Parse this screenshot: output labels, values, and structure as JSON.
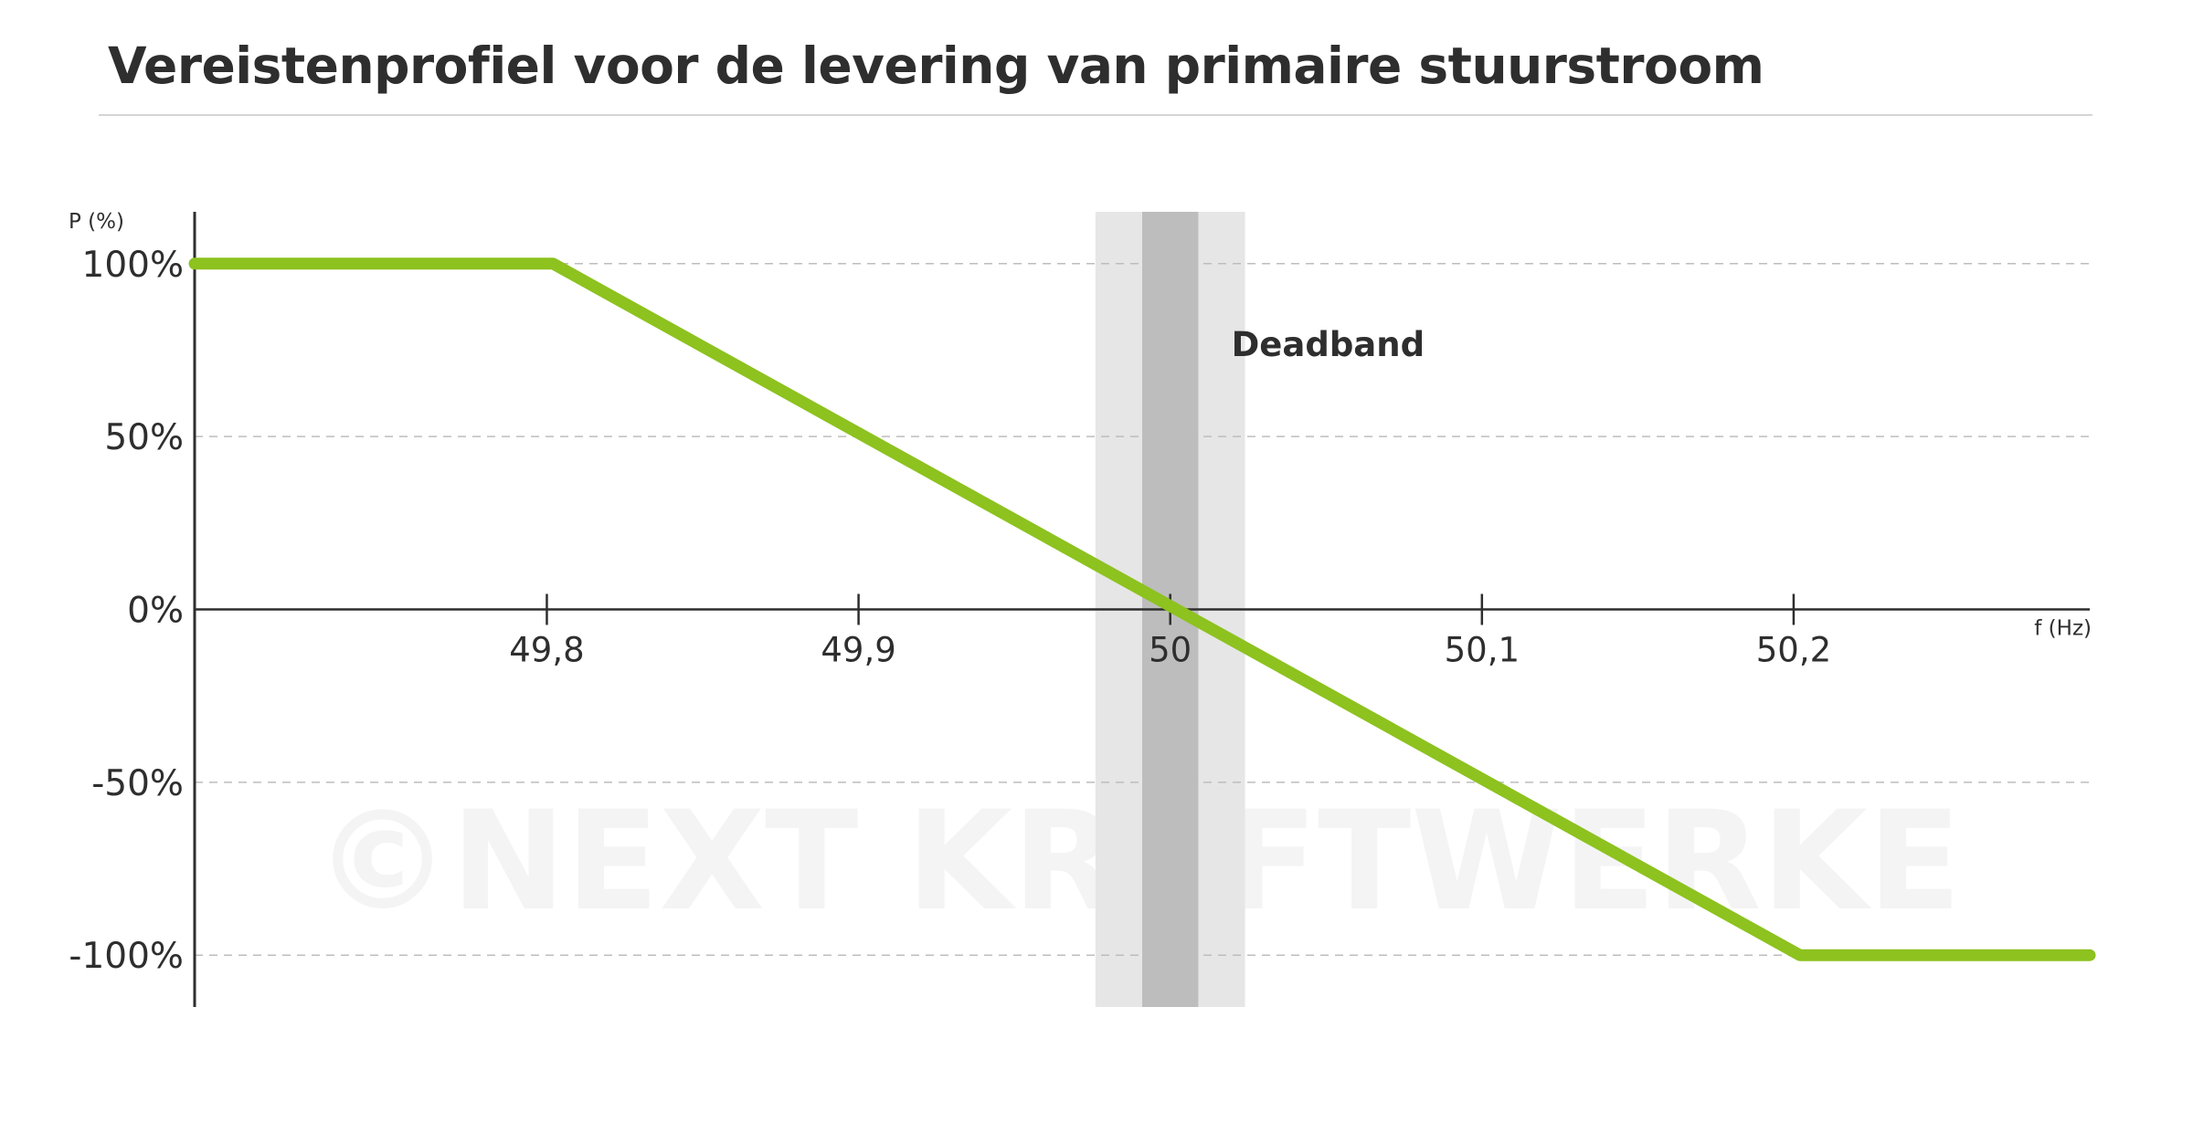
{
  "chart_data": {
    "type": "line",
    "title": "Vereistenprofiel voor de levering van primaire stuurstroom",
    "xlabel": "f (Hz)",
    "ylabel": "P (%)",
    "x_ticks": [
      {
        "value": 49.8,
        "label": "49,8"
      },
      {
        "value": 49.9,
        "label": "49,9"
      },
      {
        "value": 50.0,
        "label": "50"
      },
      {
        "value": 50.1,
        "label": "50,1"
      },
      {
        "value": 50.2,
        "label": "50,2"
      }
    ],
    "y_ticks": [
      {
        "value": 100,
        "label": "100%"
      },
      {
        "value": 50,
        "label": "50%"
      },
      {
        "value": 0,
        "label": "0%"
      },
      {
        "value": -50,
        "label": "-50%"
      },
      {
        "value": -100,
        "label": "-100%"
      }
    ],
    "xlim": [
      49.687,
      50.295
    ],
    "ylim": [
      -115,
      115
    ],
    "grid": "dashed horizontal lines at y ticks",
    "series": [
      {
        "color": "#8dc21f",
        "points": [
          {
            "x": 49.687,
            "y": 100
          },
          {
            "x": 49.802,
            "y": 100
          },
          {
            "x": 50.202,
            "y": -100
          },
          {
            "x": 50.295,
            "y": -100
          }
        ]
      }
    ],
    "bands": [
      {
        "x_range": [
          49.976,
          50.024
        ],
        "color": "#e6e6e6"
      },
      {
        "x_range": [
          49.991,
          50.009
        ],
        "color": "#bdbdbd"
      }
    ],
    "annotations": [
      {
        "text": "Deadband"
      }
    ],
    "watermark": "©NEXT KRAFTWERKE"
  }
}
